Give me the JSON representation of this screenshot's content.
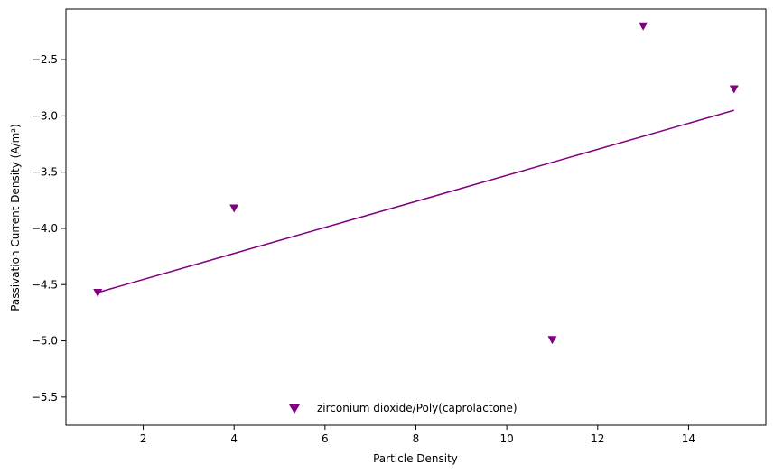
{
  "chart_data": {
    "type": "scatter",
    "title": "",
    "xlabel": "Particle Density",
    "ylabel": "Passivation Current Density (A/m²)",
    "xlim": [
      0.3,
      15.7
    ],
    "ylim": [
      -5.75,
      -2.05
    ],
    "xticks": [
      2,
      4,
      6,
      8,
      10,
      12,
      14
    ],
    "yticks": [
      -5.5,
      -5.0,
      -4.5,
      -4.0,
      -3.5,
      -3.0,
      -2.5
    ],
    "xtick_labels": [
      "2",
      "4",
      "6",
      "8",
      "10",
      "12",
      "14"
    ],
    "ytick_labels": [
      "−5.5",
      "−5.0",
      "−4.5",
      "−4.0",
      "−3.5",
      "−3.0",
      "−2.5"
    ],
    "grid": false,
    "legend_position": "lower-center",
    "series": [
      {
        "name": "zirconium dioxide/Poly(caprolactone)",
        "marker": "triangle-down",
        "color": "#800080",
        "points": [
          {
            "x": 1,
            "y": -4.57
          },
          {
            "x": 4,
            "y": -3.82
          },
          {
            "x": 11,
            "y": -4.99
          },
          {
            "x": 13,
            "y": -2.2
          },
          {
            "x": 15,
            "y": -2.76
          }
        ]
      }
    ],
    "trendline": {
      "color": "#800080",
      "x": [
        1,
        15
      ],
      "y": [
        -4.57,
        -2.95
      ]
    }
  }
}
